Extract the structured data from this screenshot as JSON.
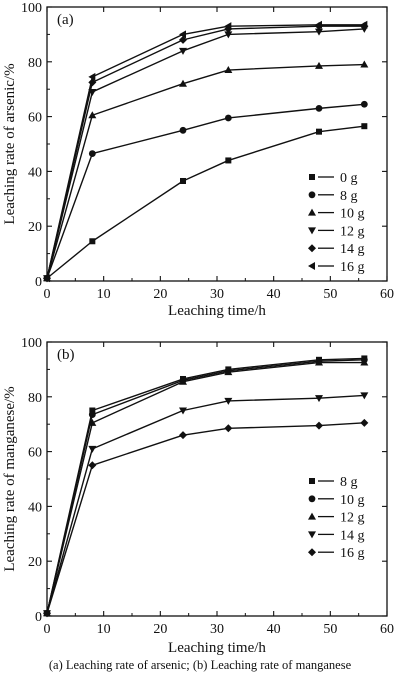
{
  "caption": "(a) Leaching rate of arsenic; (b) Leaching rate of manganese",
  "chart_data": [
    {
      "type": "line",
      "panel_label": "(a)",
      "xlabel": "Leaching time/h",
      "ylabel": "Leaching rate of arsenic/%",
      "xlim": [
        0,
        60
      ],
      "ylim": [
        0,
        100
      ],
      "xticks": [
        0,
        10,
        20,
        30,
        40,
        50,
        60
      ],
      "yticks": [
        0,
        20,
        40,
        60,
        80,
        100
      ],
      "x": [
        0,
        8,
        24,
        32,
        48,
        56
      ],
      "legend_position": "right",
      "series": [
        {
          "name": "0 g",
          "marker": "square",
          "values": [
            1,
            14.5,
            36.5,
            44,
            54.5,
            56.5
          ]
        },
        {
          "name": "8 g",
          "marker": "circle",
          "values": [
            1,
            46.5,
            55,
            59.5,
            63,
            64.5
          ]
        },
        {
          "name": "10 g",
          "marker": "triangle-up",
          "values": [
            1,
            60.5,
            72,
            77,
            78.5,
            79
          ]
        },
        {
          "name": "12 g",
          "marker": "triangle-down",
          "values": [
            1,
            69,
            84,
            90,
            91,
            92
          ]
        },
        {
          "name": "14 g",
          "marker": "diamond",
          "values": [
            1,
            72.5,
            88,
            92,
            93,
            93
          ]
        },
        {
          "name": "16 g",
          "marker": "triangle-left",
          "values": [
            1,
            74.5,
            90,
            93,
            93.5,
            93.5
          ]
        }
      ]
    },
    {
      "type": "line",
      "panel_label": "(b)",
      "xlabel": "Leaching time/h",
      "ylabel": "Leaching rate of manganese/%",
      "xlim": [
        0,
        60
      ],
      "ylim": [
        0,
        100
      ],
      "xticks": [
        0,
        10,
        20,
        30,
        40,
        50,
        60
      ],
      "yticks": [
        0,
        20,
        40,
        60,
        80,
        100
      ],
      "x": [
        0,
        8,
        24,
        32,
        48,
        56
      ],
      "legend_position": "right",
      "series": [
        {
          "name": "8 g",
          "marker": "square",
          "values": [
            1,
            75,
            86.5,
            90,
            93.5,
            94
          ]
        },
        {
          "name": "10 g",
          "marker": "circle",
          "values": [
            1,
            73.5,
            86,
            89.5,
            93,
            93.5
          ]
        },
        {
          "name": "12 g",
          "marker": "triangle-up",
          "values": [
            1,
            70.5,
            85.5,
            89,
            92.5,
            92.5
          ]
        },
        {
          "name": "14 g",
          "marker": "triangle-down",
          "values": [
            1,
            61,
            75,
            78.5,
            79.5,
            80.5
          ]
        },
        {
          "name": "16 g",
          "marker": "diamond",
          "values": [
            1,
            55,
            66,
            68.5,
            69.5,
            70.5
          ]
        }
      ]
    }
  ]
}
